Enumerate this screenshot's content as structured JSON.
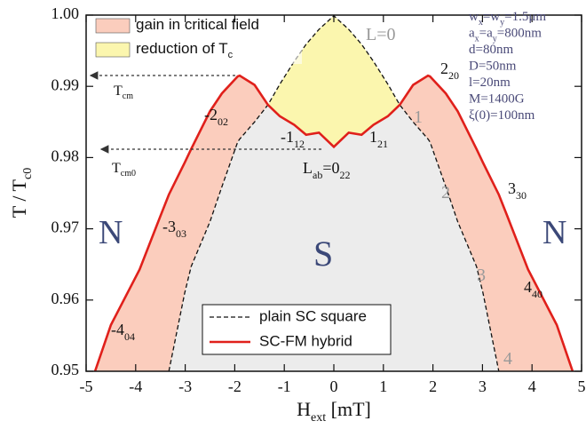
{
  "chart_data": {
    "type": "phase-diagram",
    "x_label": [
      "H",
      "ext",
      " [mT]"
    ],
    "y_label": [
      "T / T",
      "c0"
    ],
    "xlim": [
      -5,
      5
    ],
    "ylim": [
      0.95,
      1.0
    ],
    "xticks": [
      -5,
      -4,
      -3,
      -2,
      -1,
      0,
      1,
      2,
      3,
      4,
      5
    ],
    "yticks": [
      0.95,
      0.96,
      0.97,
      0.98,
      0.99,
      {
        "value": 1.0,
        "label": "1.00"
      }
    ],
    "x": [
      -4.82,
      -4.5,
      -3.92,
      -3.5,
      -3.33,
      -3.01,
      -2.88,
      -2.5,
      -2.26,
      -1.94,
      -1.9,
      -1.6,
      -1.33,
      -1.09,
      -0.8,
      -0.56,
      -0.3,
      0,
      0.3,
      0.56,
      0.8,
      1.09,
      1.33,
      1.6,
      1.9,
      1.94,
      2.26,
      2.5,
      2.88,
      3.01,
      3.33,
      3.5,
      3.92,
      4.5,
      4.82
    ],
    "series": [
      {
        "name": "plain SC square",
        "color": "#111111",
        "dashed": true,
        "values": [
          null,
          null,
          null,
          null,
          0.95,
          0.961,
          0.9647,
          0.971,
          0.9759,
          0.9822,
          0.9826,
          0.985,
          0.9874,
          0.9903,
          0.9935,
          0.9959,
          0.998,
          0.9999,
          0.998,
          0.9959,
          0.9935,
          0.9903,
          0.9874,
          0.985,
          0.9826,
          0.9822,
          0.9759,
          0.971,
          0.9647,
          0.961,
          0.95,
          null,
          null,
          null,
          null
        ]
      },
      {
        "name": "SC-FM hybrid",
        "color": "#e0201b",
        "dashed": false,
        "values": [
          0.95,
          0.9565,
          0.9643,
          0.9718,
          0.9748,
          0.9793,
          0.9812,
          0.9865,
          0.989,
          0.9914,
          0.9915,
          0.9902,
          0.9874,
          0.9858,
          0.9846,
          0.9832,
          0.9835,
          0.9815,
          0.9835,
          0.9832,
          0.9846,
          0.9858,
          0.9874,
          0.9902,
          0.9915,
          0.9914,
          0.989,
          0.9865,
          0.9812,
          0.9793,
          0.9748,
          0.9718,
          0.9643,
          0.9565,
          0.95
        ]
      }
    ],
    "regions": {
      "gain": {
        "label": [
          "gain in critical field"
        ],
        "color": "#fbcdbd"
      },
      "reduction": {
        "label": [
          "reduction of T",
          "c"
        ],
        "color": "#fbf6ae"
      },
      "superconducting": {
        "color": "#ececec"
      }
    },
    "annotations": [
      {
        "parts": [
          "L=0"
        ],
        "color": "#999999"
      },
      {
        "parts": [
          "2",
          "20"
        ],
        "color": "#111111"
      },
      {
        "parts": [
          "-2",
          "02"
        ],
        "color": "#111111"
      },
      {
        "parts": [
          "-1",
          "12"
        ],
        "color": "#111111"
      },
      {
        "parts": [
          "1",
          "21"
        ],
        "color": "#111111"
      },
      {
        "parts": [
          "L",
          "ab",
          "=0",
          "22"
        ],
        "color": "#111111"
      },
      {
        "parts": [
          "3",
          "30"
        ],
        "color": "#111111"
      },
      {
        "parts": [
          "-3",
          "03"
        ],
        "color": "#111111"
      },
      {
        "parts": [
          "4",
          "40"
        ],
        "color": "#111111"
      },
      {
        "parts": [
          "-4",
          "04"
        ],
        "color": "#111111"
      },
      {
        "parts": [
          "1"
        ],
        "color": "#999999"
      },
      {
        "parts": [
          "2"
        ],
        "color": "#999999"
      },
      {
        "parts": [
          "3"
        ],
        "color": "#999999"
      },
      {
        "parts": [
          "4"
        ],
        "color": "#999999"
      },
      {
        "parts": [
          "T",
          "cm"
        ],
        "color": "#111111"
      },
      {
        "parts": [
          "T",
          "cm0"
        ],
        "color": "#111111"
      },
      {
        "parts": [
          "N"
        ],
        "color": "#3b4878"
      },
      {
        "parts": [
          "N"
        ],
        "color": "#3b4878"
      },
      {
        "parts": [
          "S"
        ],
        "color": "#3b4878"
      }
    ],
    "parameters": [
      [
        "w",
        "x",
        "=w",
        "y",
        "=1.5μm"
      ],
      [
        "a",
        "x",
        "=a",
        "y",
        "=800nm"
      ],
      [
        "d=80nm"
      ],
      [
        "D=50nm"
      ],
      [
        "l=20nm"
      ],
      [
        "M=1400G"
      ],
      [
        "ξ(0)=100nm"
      ]
    ]
  }
}
